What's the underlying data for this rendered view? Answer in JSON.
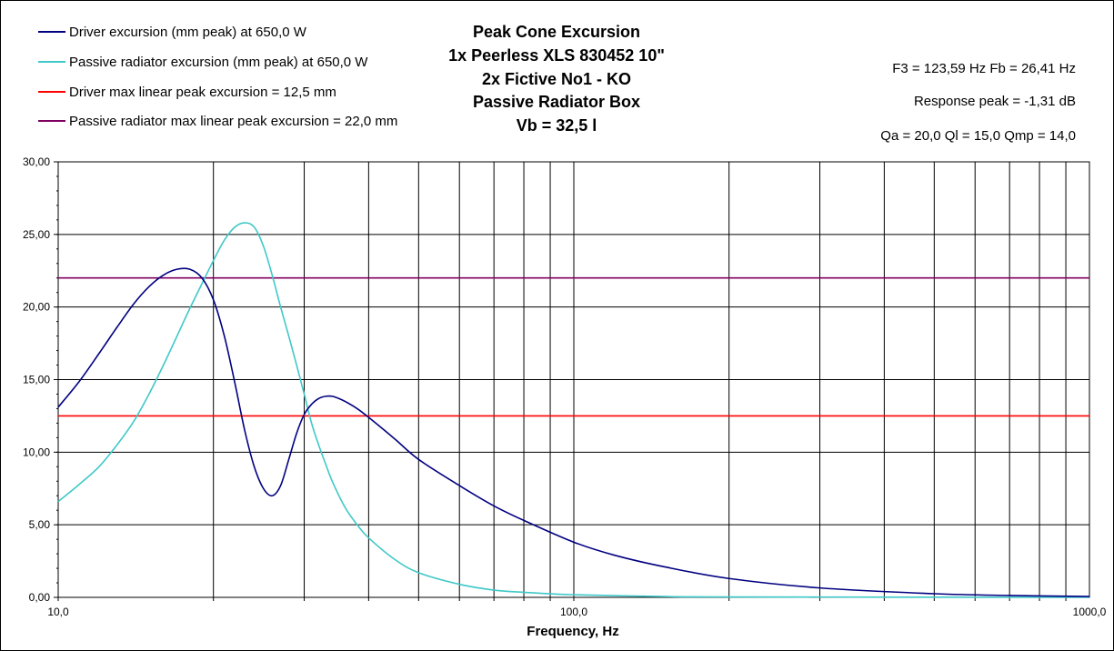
{
  "title_lines": [
    "Peak Cone Excursion",
    "1x Peerless XLS 830452 10\"",
    "2x Fictive No1 - KO",
    "Passive Radiator Box",
    "Vb = 32,5 l"
  ],
  "info": {
    "f3_fb": "F3 = 123,59 Hz  Fb = 26,41 Hz",
    "response_peak": "Response peak = -1,31 dB",
    "q_values": "Qa = 20,0  Ql = 15,0  Qmp = 14,0"
  },
  "colors": {
    "driver": "#000080",
    "passive": "#40C8C8",
    "driver_max": "#FF0000",
    "passive_max": "#800060"
  },
  "chart_data": {
    "type": "line",
    "xscale": "log",
    "xlim": [
      10,
      1000
    ],
    "ylim": [
      0,
      30
    ],
    "grid": true,
    "legend_placement": "top-left",
    "xlabel": "Frequency, Hz",
    "ylabel": "",
    "x_tick_labels": [
      "10,0",
      "100,0",
      "1000,0"
    ],
    "y_tick_labels": [
      "0,00",
      "5,00",
      "10,00",
      "15,00",
      "20,00",
      "25,00",
      "30,00"
    ],
    "series": [
      {
        "name": "Driver excursion (mm peak) at 650,0 W",
        "x": [
          10,
          11,
          12,
          13,
          14,
          15,
          16,
          17,
          18,
          19,
          20,
          21,
          22,
          23,
          24,
          25,
          26,
          27,
          28,
          29,
          30,
          31,
          32,
          33,
          34,
          35,
          36,
          38,
          40,
          45,
          50,
          60,
          70,
          80,
          100,
          120,
          150,
          200,
          300,
          500,
          700,
          1000
        ],
        "y": [
          13.1,
          14.9,
          16.8,
          18.6,
          20.2,
          21.4,
          22.2,
          22.6,
          22.6,
          22.0,
          20.5,
          18.0,
          14.8,
          11.5,
          9.0,
          7.5,
          7.0,
          7.7,
          9.5,
          11.3,
          12.6,
          13.3,
          13.7,
          13.85,
          13.85,
          13.7,
          13.5,
          13.0,
          12.4,
          10.9,
          9.5,
          7.7,
          6.3,
          5.3,
          3.8,
          2.9,
          2.1,
          1.3,
          0.65,
          0.25,
          0.13,
          0.06
        ]
      },
      {
        "name": "Passive radiator excursion (mm peak) at 650,0 W",
        "x": [
          10,
          11,
          12,
          13,
          14,
          15,
          16,
          17,
          18,
          19,
          20,
          21,
          22,
          23,
          24,
          25,
          26,
          27,
          28,
          29,
          30,
          31,
          32,
          33,
          34,
          36,
          38,
          40,
          45,
          50,
          60,
          70,
          80,
          100,
          150,
          200,
          1000
        ],
        "y": [
          6.6,
          7.8,
          9.0,
          10.5,
          12.1,
          14.0,
          16.0,
          18.0,
          19.9,
          21.6,
          23.2,
          24.6,
          25.5,
          25.8,
          25.5,
          24.2,
          22.2,
          20.0,
          18.0,
          16.0,
          14.0,
          12.0,
          10.5,
          9.2,
          8.0,
          6.2,
          5.0,
          4.1,
          2.6,
          1.7,
          0.9,
          0.5,
          0.35,
          0.18,
          0.06,
          0.03,
          0.0
        ]
      },
      {
        "name": "Driver max linear peak excursion = 12,5 mm",
        "x": [
          10,
          1000
        ],
        "y": [
          12.5,
          12.5
        ]
      },
      {
        "name": "Passive radiator max linear peak excursion = 22,0 mm",
        "x": [
          10,
          1000
        ],
        "y": [
          22.0,
          22.0
        ]
      }
    ]
  }
}
